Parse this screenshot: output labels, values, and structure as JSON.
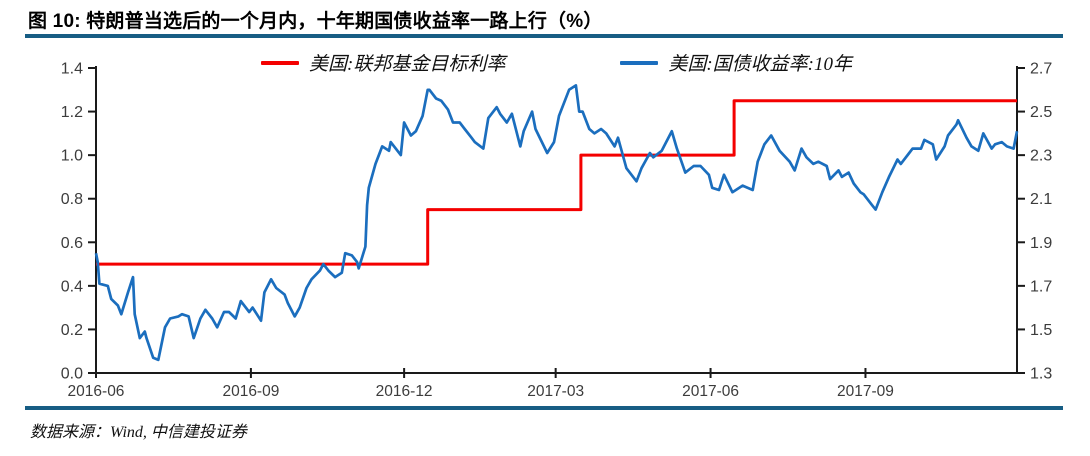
{
  "header": {
    "title": "图 10: 特朗普当选后的一个月内，十年期国债收益率一路上行（%）"
  },
  "legend": {
    "items": [
      {
        "label": "美国:联邦基金目标利率",
        "color": "#f40000"
      },
      {
        "label": "美国:国债收益率:10年",
        "color": "#1b6ebe"
      }
    ]
  },
  "footer": {
    "source": "数据来源：Wind, 中信建投证券"
  },
  "colors": {
    "rule_blue": "#175d84",
    "fed_funds_red": "#f40000",
    "treasury_blue": "#1b6ebe",
    "axis": "#1a1a1a",
    "tick_label": "#3c3c3c"
  },
  "chart_data": {
    "type": "line",
    "title": "特朗普当选后的一个月内，十年期国债收益率一路上行（%）",
    "grid": false,
    "legend_position": "top-center",
    "x_domain": [
      "2016-06-01",
      "2017-11-30"
    ],
    "x_ticks": [
      {
        "date": "2016-06-01",
        "label": "2016-06"
      },
      {
        "date": "2016-09-01",
        "label": "2016-09"
      },
      {
        "date": "2016-12-01",
        "label": "2016-12"
      },
      {
        "date": "2017-03-01",
        "label": "2017-03"
      },
      {
        "date": "2017-06-01",
        "label": "2017-06"
      },
      {
        "date": "2017-09-01",
        "label": "2017-09"
      }
    ],
    "left_axis": {
      "min": 0.0,
      "max": 1.4,
      "ticks": [
        {
          "v": 0.0,
          "label": "0.0"
        },
        {
          "v": 0.2,
          "label": "0.2"
        },
        {
          "v": 0.4,
          "label": "0.4"
        },
        {
          "v": 0.6,
          "label": "0.6"
        },
        {
          "v": 0.8,
          "label": "0.8"
        },
        {
          "v": 1.0,
          "label": "1.0"
        },
        {
          "v": 1.2,
          "label": "1.2"
        },
        {
          "v": 1.4,
          "label": "1.4"
        }
      ]
    },
    "right_axis": {
      "min": 1.3,
      "max": 2.7,
      "ticks": [
        {
          "v": 1.3,
          "label": "1.3"
        },
        {
          "v": 1.5,
          "label": "1.5"
        },
        {
          "v": 1.7,
          "label": "1.7"
        },
        {
          "v": 1.9,
          "label": "1.9"
        },
        {
          "v": 2.1,
          "label": "2.1"
        },
        {
          "v": 2.3,
          "label": "2.3"
        },
        {
          "v": 2.5,
          "label": "2.5"
        },
        {
          "v": 2.7,
          "label": "2.7"
        }
      ]
    },
    "series": [
      {
        "name": "美国:联邦基金目标利率",
        "axis": "left",
        "style": "step",
        "color": "#f40000",
        "points": [
          [
            "2016-06-01",
            0.5
          ],
          [
            "2016-12-15",
            0.75
          ],
          [
            "2017-03-16",
            1.0
          ],
          [
            "2017-06-15",
            1.25
          ],
          [
            "2017-11-30",
            1.25
          ]
        ]
      },
      {
        "name": "美国:国债收益率:10年",
        "axis": "right",
        "style": "line",
        "color": "#1b6ebe",
        "points": [
          [
            "2016-06-01",
            1.85
          ],
          [
            "2016-06-02",
            1.81
          ],
          [
            "2016-06-03",
            1.71
          ],
          [
            "2016-06-08",
            1.7
          ],
          [
            "2016-06-10",
            1.64
          ],
          [
            "2016-06-14",
            1.61
          ],
          [
            "2016-06-16",
            1.57
          ],
          [
            "2016-06-20",
            1.67
          ],
          [
            "2016-06-23",
            1.74
          ],
          [
            "2016-06-24",
            1.57
          ],
          [
            "2016-06-27",
            1.46
          ],
          [
            "2016-06-30",
            1.49
          ],
          [
            "2016-07-01",
            1.46
          ],
          [
            "2016-07-05",
            1.37
          ],
          [
            "2016-07-08",
            1.36
          ],
          [
            "2016-07-12",
            1.51
          ],
          [
            "2016-07-15",
            1.55
          ],
          [
            "2016-07-20",
            1.56
          ],
          [
            "2016-07-22",
            1.57
          ],
          [
            "2016-07-26",
            1.56
          ],
          [
            "2016-07-29",
            1.46
          ],
          [
            "2016-08-02",
            1.55
          ],
          [
            "2016-08-05",
            1.59
          ],
          [
            "2016-08-09",
            1.55
          ],
          [
            "2016-08-12",
            1.51
          ],
          [
            "2016-08-16",
            1.58
          ],
          [
            "2016-08-19",
            1.58
          ],
          [
            "2016-08-23",
            1.55
          ],
          [
            "2016-08-26",
            1.63
          ],
          [
            "2016-08-31",
            1.58
          ],
          [
            "2016-09-02",
            1.6
          ],
          [
            "2016-09-07",
            1.54
          ],
          [
            "2016-09-09",
            1.67
          ],
          [
            "2016-09-13",
            1.73
          ],
          [
            "2016-09-16",
            1.69
          ],
          [
            "2016-09-21",
            1.66
          ],
          [
            "2016-09-23",
            1.62
          ],
          [
            "2016-09-27",
            1.56
          ],
          [
            "2016-09-30",
            1.6
          ],
          [
            "2016-10-04",
            1.69
          ],
          [
            "2016-10-07",
            1.73
          ],
          [
            "2016-10-12",
            1.77
          ],
          [
            "2016-10-14",
            1.8
          ],
          [
            "2016-10-17",
            1.77
          ],
          [
            "2016-10-21",
            1.74
          ],
          [
            "2016-10-25",
            1.76
          ],
          [
            "2016-10-27",
            1.85
          ],
          [
            "2016-10-31",
            1.84
          ],
          [
            "2016-11-03",
            1.81
          ],
          [
            "2016-11-04",
            1.78
          ],
          [
            "2016-11-08",
            1.88
          ],
          [
            "2016-11-09",
            2.07
          ],
          [
            "2016-11-10",
            2.15
          ],
          [
            "2016-11-14",
            2.26
          ],
          [
            "2016-11-18",
            2.34
          ],
          [
            "2016-11-22",
            2.32
          ],
          [
            "2016-11-23",
            2.36
          ],
          [
            "2016-11-29",
            2.3
          ],
          [
            "2016-12-01",
            2.45
          ],
          [
            "2016-12-05",
            2.39
          ],
          [
            "2016-12-08",
            2.41
          ],
          [
            "2016-12-12",
            2.48
          ],
          [
            "2016-12-15",
            2.6
          ],
          [
            "2016-12-16",
            2.6
          ],
          [
            "2016-12-20",
            2.56
          ],
          [
            "2016-12-23",
            2.55
          ],
          [
            "2016-12-27",
            2.51
          ],
          [
            "2016-12-30",
            2.45
          ],
          [
            "2017-01-03",
            2.45
          ],
          [
            "2017-01-06",
            2.42
          ],
          [
            "2017-01-10",
            2.38
          ],
          [
            "2017-01-12",
            2.36
          ],
          [
            "2017-01-17",
            2.33
          ],
          [
            "2017-01-20",
            2.47
          ],
          [
            "2017-01-25",
            2.52
          ],
          [
            "2017-01-27",
            2.49
          ],
          [
            "2017-01-31",
            2.45
          ],
          [
            "2017-02-03",
            2.49
          ],
          [
            "2017-02-08",
            2.34
          ],
          [
            "2017-02-10",
            2.41
          ],
          [
            "2017-02-15",
            2.5
          ],
          [
            "2017-02-17",
            2.42
          ],
          [
            "2017-02-24",
            2.31
          ],
          [
            "2017-02-28",
            2.36
          ],
          [
            "2017-03-03",
            2.48
          ],
          [
            "2017-03-09",
            2.6
          ],
          [
            "2017-03-13",
            2.62
          ],
          [
            "2017-03-15",
            2.5
          ],
          [
            "2017-03-17",
            2.5
          ],
          [
            "2017-03-21",
            2.42
          ],
          [
            "2017-03-24",
            2.4
          ],
          [
            "2017-03-28",
            2.42
          ],
          [
            "2017-03-31",
            2.4
          ],
          [
            "2017-04-05",
            2.34
          ],
          [
            "2017-04-07",
            2.38
          ],
          [
            "2017-04-12",
            2.24
          ],
          [
            "2017-04-18",
            2.18
          ],
          [
            "2017-04-21",
            2.24
          ],
          [
            "2017-04-26",
            2.31
          ],
          [
            "2017-04-28",
            2.29
          ],
          [
            "2017-05-03",
            2.32
          ],
          [
            "2017-05-09",
            2.41
          ],
          [
            "2017-05-12",
            2.33
          ],
          [
            "2017-05-17",
            2.22
          ],
          [
            "2017-05-22",
            2.25
          ],
          [
            "2017-05-26",
            2.25
          ],
          [
            "2017-05-31",
            2.21
          ],
          [
            "2017-06-02",
            2.15
          ],
          [
            "2017-06-06",
            2.14
          ],
          [
            "2017-06-09",
            2.21
          ],
          [
            "2017-06-14",
            2.13
          ],
          [
            "2017-06-20",
            2.16
          ],
          [
            "2017-06-26",
            2.14
          ],
          [
            "2017-06-29",
            2.27
          ],
          [
            "2017-07-03",
            2.35
          ],
          [
            "2017-07-07",
            2.39
          ],
          [
            "2017-07-12",
            2.32
          ],
          [
            "2017-07-18",
            2.27
          ],
          [
            "2017-07-21",
            2.23
          ],
          [
            "2017-07-25",
            2.33
          ],
          [
            "2017-07-28",
            2.29
          ],
          [
            "2017-08-01",
            2.26
          ],
          [
            "2017-08-04",
            2.27
          ],
          [
            "2017-08-09",
            2.25
          ],
          [
            "2017-08-11",
            2.19
          ],
          [
            "2017-08-16",
            2.23
          ],
          [
            "2017-08-18",
            2.2
          ],
          [
            "2017-08-22",
            2.22
          ],
          [
            "2017-08-25",
            2.17
          ],
          [
            "2017-08-29",
            2.13
          ],
          [
            "2017-08-31",
            2.12
          ],
          [
            "2017-09-05",
            2.07
          ],
          [
            "2017-09-07",
            2.05
          ],
          [
            "2017-09-11",
            2.13
          ],
          [
            "2017-09-15",
            2.2
          ],
          [
            "2017-09-20",
            2.28
          ],
          [
            "2017-09-22",
            2.26
          ],
          [
            "2017-09-27",
            2.31
          ],
          [
            "2017-09-29",
            2.33
          ],
          [
            "2017-10-04",
            2.33
          ],
          [
            "2017-10-06",
            2.37
          ],
          [
            "2017-10-11",
            2.35
          ],
          [
            "2017-10-13",
            2.28
          ],
          [
            "2017-10-18",
            2.34
          ],
          [
            "2017-10-20",
            2.39
          ],
          [
            "2017-10-25",
            2.44
          ],
          [
            "2017-10-26",
            2.46
          ],
          [
            "2017-10-31",
            2.38
          ],
          [
            "2017-11-03",
            2.34
          ],
          [
            "2017-11-07",
            2.32
          ],
          [
            "2017-11-10",
            2.4
          ],
          [
            "2017-11-15",
            2.33
          ],
          [
            "2017-11-17",
            2.35
          ],
          [
            "2017-11-21",
            2.36
          ],
          [
            "2017-11-24",
            2.34
          ],
          [
            "2017-11-28",
            2.33
          ],
          [
            "2017-11-30",
            2.41
          ]
        ]
      }
    ]
  }
}
